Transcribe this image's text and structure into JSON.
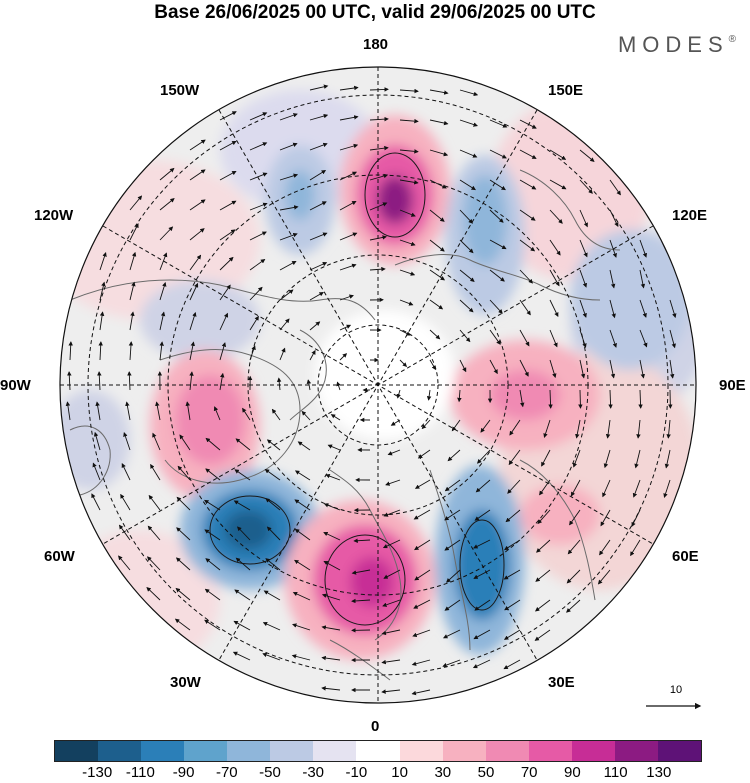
{
  "title": "Base 26/06/2025 00 UTC, valid 29/06/2025 00 UTC",
  "brand": {
    "name": "MODES",
    "mark": "®"
  },
  "longitude_labels": {
    "top": "180",
    "bottom": "0",
    "left": "90W",
    "right": "90E",
    "upper_left_1": "150W",
    "upper_left_2": "120W",
    "lower_left_1": "60W",
    "lower_left_2": "30W",
    "upper_right_1": "150E",
    "upper_right_2": "120E",
    "lower_right_1": "60E",
    "lower_right_2": "30E"
  },
  "reference_vector": {
    "value": "10"
  },
  "colorbar": {
    "colors": [
      "#13405f",
      "#1d5f8d",
      "#2b7fb8",
      "#5fa3cc",
      "#8fb6da",
      "#bccae4",
      "#e5e3f1",
      "#ffffff",
      "#fcd9dc",
      "#f7b1c0",
      "#f08ab3",
      "#e65aa6",
      "#c72d96",
      "#8c1b82",
      "#5e1277"
    ],
    "tick_labels": [
      "-130",
      "-110",
      "-90",
      "-70",
      "-50",
      "-30",
      "-10",
      "10",
      "30",
      "50",
      "70",
      "90",
      "110",
      "130"
    ]
  }
}
